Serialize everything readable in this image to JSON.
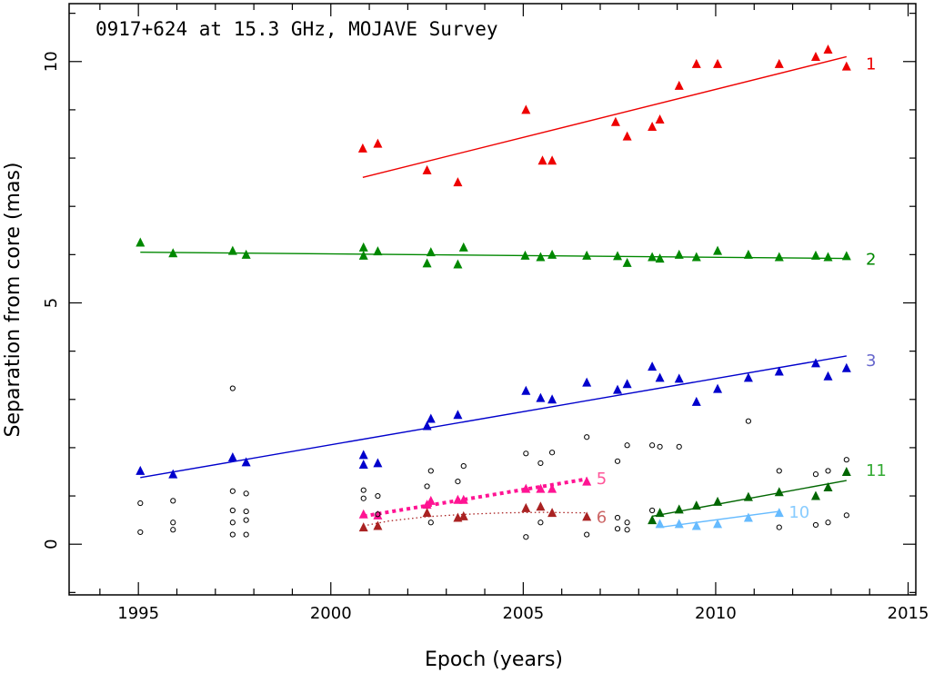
{
  "chart_data": {
    "type": "scatter",
    "title": "0917+624 at 15.3 GHz, MOJAVE Survey",
    "xlabel": "Epoch (years)",
    "ylabel": "Separation from core (mas)",
    "xlim": [
      1993.2,
      2015.2
    ],
    "ylim": [
      -1.05,
      11.2
    ],
    "xticks": [
      1995,
      2000,
      2005,
      2010,
      2015
    ],
    "yticks": [
      0,
      5,
      10
    ],
    "grid": false,
    "legend": "none",
    "series": [
      {
        "name": "1",
        "color": "#ee0000",
        "marker": "triangle",
        "points": [
          [
            2000.83,
            8.2
          ],
          [
            2001.22,
            8.3
          ],
          [
            2002.5,
            7.75
          ],
          [
            2003.3,
            7.5
          ],
          [
            2005.07,
            9.0
          ],
          [
            2005.5,
            7.95
          ],
          [
            2005.75,
            7.95
          ],
          [
            2007.4,
            8.75
          ],
          [
            2007.7,
            8.45
          ],
          [
            2008.35,
            8.65
          ],
          [
            2008.55,
            8.8
          ],
          [
            2009.05,
            9.5
          ],
          [
            2009.5,
            9.95
          ],
          [
            2010.05,
            9.95
          ],
          [
            2011.65,
            9.95
          ],
          [
            2012.6,
            10.1
          ],
          [
            2012.92,
            10.25
          ],
          [
            2013.4,
            9.9
          ]
        ],
        "fit": {
          "x": [
            2000.83,
            2013.4
          ],
          "y": [
            7.6,
            10.1
          ],
          "style": "solid"
        }
      },
      {
        "name": "2",
        "color": "#008800",
        "marker": "triangle",
        "points": [
          [
            1995.05,
            6.25
          ],
          [
            1995.9,
            6.03
          ],
          [
            1997.45,
            6.08
          ],
          [
            1997.8,
            6.0
          ],
          [
            2000.85,
            6.15
          ],
          [
            2000.85,
            5.98
          ],
          [
            2001.22,
            6.07
          ],
          [
            2002.5,
            5.82
          ],
          [
            2002.6,
            6.05
          ],
          [
            2003.3,
            5.8
          ],
          [
            2003.45,
            6.15
          ],
          [
            2005.05,
            5.98
          ],
          [
            2005.45,
            5.95
          ],
          [
            2005.75,
            6.0
          ],
          [
            2006.65,
            5.98
          ],
          [
            2007.45,
            5.97
          ],
          [
            2007.7,
            5.83
          ],
          [
            2008.35,
            5.95
          ],
          [
            2008.55,
            5.92
          ],
          [
            2009.05,
            6.0
          ],
          [
            2009.5,
            5.95
          ],
          [
            2010.05,
            6.08
          ],
          [
            2010.85,
            6.0
          ],
          [
            2011.65,
            5.95
          ],
          [
            2012.6,
            5.98
          ],
          [
            2012.92,
            5.95
          ],
          [
            2013.4,
            5.97
          ]
        ],
        "fit": {
          "x": [
            1995.05,
            2013.4
          ],
          "y": [
            6.05,
            5.92
          ],
          "style": "solid"
        }
      },
      {
        "name": "3",
        "color": "#0000cc",
        "marker": "triangle",
        "points": [
          [
            1995.05,
            1.52
          ],
          [
            1995.9,
            1.45
          ],
          [
            1997.45,
            1.8
          ],
          [
            1997.8,
            1.7
          ],
          [
            2000.85,
            1.85
          ],
          [
            2000.85,
            1.65
          ],
          [
            2001.22,
            1.68
          ],
          [
            2002.5,
            2.45
          ],
          [
            2002.6,
            2.6
          ],
          [
            2003.3,
            2.68
          ],
          [
            2005.07,
            3.18
          ],
          [
            2005.45,
            3.03
          ],
          [
            2005.75,
            3.0
          ],
          [
            2006.65,
            3.35
          ],
          [
            2007.45,
            3.2
          ],
          [
            2007.7,
            3.32
          ],
          [
            2008.35,
            3.68
          ],
          [
            2008.55,
            3.45
          ],
          [
            2009.05,
            3.43
          ],
          [
            2009.5,
            2.95
          ],
          [
            2010.05,
            3.22
          ],
          [
            2010.85,
            3.45
          ],
          [
            2011.65,
            3.58
          ],
          [
            2012.6,
            3.75
          ],
          [
            2012.92,
            3.48
          ],
          [
            2013.4,
            3.65
          ]
        ],
        "fit": {
          "x": [
            1995.05,
            2013.4
          ],
          "y": [
            1.38,
            3.9
          ],
          "style": "solid"
        }
      },
      {
        "name": "5",
        "color": "#ff1493",
        "marker": "triangle",
        "points": [
          [
            2000.85,
            0.62
          ],
          [
            2001.22,
            0.6
          ],
          [
            2002.5,
            0.82
          ],
          [
            2002.6,
            0.9
          ],
          [
            2003.3,
            0.92
          ],
          [
            2003.45,
            0.92
          ],
          [
            2005.07,
            1.15
          ],
          [
            2005.45,
            1.15
          ],
          [
            2005.75,
            1.15
          ],
          [
            2006.65,
            1.3
          ]
        ],
        "fit": {
          "x": [
            2000.85,
            2006.65
          ],
          "y": [
            0.58,
            1.35
          ],
          "style": "dotted-thick"
        }
      },
      {
        "name": "6",
        "color": "#aa2222",
        "marker": "triangle",
        "points": [
          [
            2000.85,
            0.35
          ],
          [
            2001.22,
            0.38
          ],
          [
            2002.5,
            0.65
          ],
          [
            2003.3,
            0.55
          ],
          [
            2003.45,
            0.58
          ],
          [
            2005.07,
            0.75
          ],
          [
            2005.45,
            0.78
          ],
          [
            2005.75,
            0.65
          ],
          [
            2006.65,
            0.57
          ]
        ],
        "fit": {
          "x": [
            2000.85,
            2001.5,
            2002.5,
            2003.5,
            2004.5,
            2005.5,
            2006.65
          ],
          "y": [
            0.38,
            0.48,
            0.57,
            0.62,
            0.65,
            0.66,
            0.65
          ],
          "style": "dotted"
        }
      },
      {
        "name": "10",
        "color": "#66bbff",
        "marker": "triangle",
        "points": [
          [
            2008.55,
            0.42
          ],
          [
            2009.05,
            0.42
          ],
          [
            2009.5,
            0.38
          ],
          [
            2010.05,
            0.42
          ],
          [
            2010.85,
            0.55
          ],
          [
            2011.65,
            0.65
          ]
        ],
        "fit": {
          "x": [
            2008.55,
            2011.65
          ],
          "y": [
            0.35,
            0.68
          ],
          "style": "solid"
        }
      },
      {
        "name": "11",
        "color": "#006600",
        "marker": "triangle",
        "points": [
          [
            2008.35,
            0.5
          ],
          [
            2008.55,
            0.65
          ],
          [
            2009.05,
            0.72
          ],
          [
            2009.5,
            0.8
          ],
          [
            2010.05,
            0.88
          ],
          [
            2010.85,
            0.98
          ],
          [
            2011.65,
            1.08
          ],
          [
            2012.6,
            1.0
          ],
          [
            2012.92,
            1.18
          ],
          [
            2013.4,
            1.5
          ]
        ],
        "fit": {
          "x": [
            2008.35,
            2013.4
          ],
          "y": [
            0.58,
            1.32
          ],
          "style": "solid"
        }
      },
      {
        "name": "",
        "color": "#000000",
        "marker": "open-circle",
        "points": [
          [
            1995.05,
            0.85
          ],
          [
            1995.05,
            0.25
          ],
          [
            1995.9,
            0.9
          ],
          [
            1995.9,
            0.45
          ],
          [
            1995.9,
            0.3
          ],
          [
            1997.45,
            3.23
          ],
          [
            1997.45,
            1.1
          ],
          [
            1997.45,
            0.7
          ],
          [
            1997.45,
            0.45
          ],
          [
            1997.45,
            0.2
          ],
          [
            1997.8,
            1.05
          ],
          [
            1997.8,
            0.68
          ],
          [
            1997.8,
            0.5
          ],
          [
            1997.8,
            0.2
          ],
          [
            2000.85,
            1.12
          ],
          [
            2000.85,
            0.95
          ],
          [
            2001.22,
            1.0
          ],
          [
            2001.22,
            0.62
          ],
          [
            2002.5,
            1.2
          ],
          [
            2002.6,
            1.52
          ],
          [
            2002.6,
            0.45
          ],
          [
            2003.3,
            1.3
          ],
          [
            2003.45,
            1.62
          ],
          [
            2005.07,
            1.88
          ],
          [
            2005.07,
            0.15
          ],
          [
            2005.45,
            1.68
          ],
          [
            2005.45,
            0.45
          ],
          [
            2005.75,
            1.9
          ],
          [
            2006.65,
            2.22
          ],
          [
            2006.65,
            0.2
          ],
          [
            2007.45,
            1.72
          ],
          [
            2007.45,
            0.55
          ],
          [
            2007.45,
            0.32
          ],
          [
            2007.7,
            2.05
          ],
          [
            2007.7,
            0.45
          ],
          [
            2007.7,
            0.3
          ],
          [
            2008.35,
            2.05
          ],
          [
            2008.35,
            0.7
          ],
          [
            2008.55,
            2.02
          ],
          [
            2009.05,
            2.02
          ],
          [
            2010.85,
            2.55
          ],
          [
            2011.65,
            1.52
          ],
          [
            2011.65,
            0.35
          ],
          [
            2012.6,
            1.45
          ],
          [
            2012.6,
            0.4
          ],
          [
            2012.92,
            1.52
          ],
          [
            2012.92,
            0.45
          ],
          [
            2013.4,
            1.75
          ],
          [
            2013.4,
            0.6
          ]
        ]
      }
    ],
    "labels": [
      {
        "text": "1",
        "color": "#ee0000",
        "x": 2013.9,
        "y": 9.97
      },
      {
        "text": "2",
        "color": "#008800",
        "x": 2013.9,
        "y": 5.92
      },
      {
        "text": "3",
        "color": "#6666cc",
        "x": 2013.9,
        "y": 3.82
      },
      {
        "text": "5",
        "color": "#ff5599",
        "x": 2006.9,
        "y": 1.38
      },
      {
        "text": "6",
        "color": "#cc6666",
        "x": 2006.9,
        "y": 0.58
      },
      {
        "text": "10",
        "color": "#88ccff",
        "x": 2011.9,
        "y": 0.68
      },
      {
        "text": "11",
        "color": "#33aa33",
        "x": 2013.9,
        "y": 1.55
      }
    ]
  }
}
